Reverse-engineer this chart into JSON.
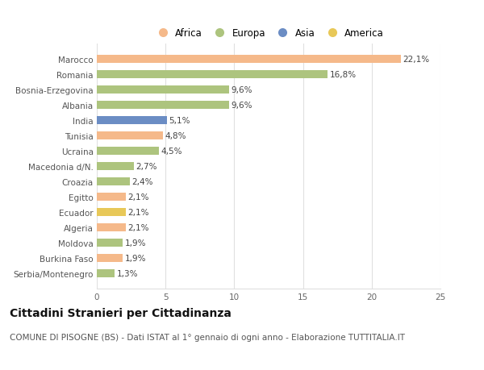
{
  "countries": [
    "Marocco",
    "Romania",
    "Bosnia-Erzegovina",
    "Albania",
    "India",
    "Tunisia",
    "Ucraina",
    "Macedonia d/N.",
    "Croazia",
    "Egitto",
    "Ecuador",
    "Algeria",
    "Moldova",
    "Burkina Faso",
    "Serbia/Montenegro"
  ],
  "values": [
    22.1,
    16.8,
    9.6,
    9.6,
    5.1,
    4.8,
    4.5,
    2.7,
    2.4,
    2.1,
    2.1,
    2.1,
    1.9,
    1.9,
    1.3
  ],
  "labels": [
    "22,1%",
    "16,8%",
    "9,6%",
    "9,6%",
    "5,1%",
    "4,8%",
    "4,5%",
    "2,7%",
    "2,4%",
    "2,1%",
    "2,1%",
    "2,1%",
    "1,9%",
    "1,9%",
    "1,3%"
  ],
  "colors": [
    "#f5b98a",
    "#adc47e",
    "#adc47e",
    "#adc47e",
    "#6b8dc4",
    "#f5b98a",
    "#adc47e",
    "#adc47e",
    "#adc47e",
    "#f5b98a",
    "#e8c858",
    "#f5b98a",
    "#adc47e",
    "#f5b98a",
    "#adc47e"
  ],
  "legend_labels": [
    "Africa",
    "Europa",
    "Asia",
    "America"
  ],
  "legend_colors": [
    "#f5b98a",
    "#adc47e",
    "#6b8dc4",
    "#e8c858"
  ],
  "title": "Cittadini Stranieri per Cittadinanza",
  "subtitle": "COMUNE DI PISOGNE (BS) - Dati ISTAT al 1° gennaio di ogni anno - Elaborazione TUTTITALIA.IT",
  "xlim": [
    0,
    25
  ],
  "xticks": [
    0,
    5,
    10,
    15,
    20,
    25
  ],
  "bg_color": "#ffffff",
  "grid_color": "#e0e0e0",
  "bar_height": 0.55,
  "title_fontsize": 10,
  "subtitle_fontsize": 7.5,
  "label_fontsize": 7.5,
  "tick_fontsize": 7.5,
  "legend_fontsize": 8.5
}
